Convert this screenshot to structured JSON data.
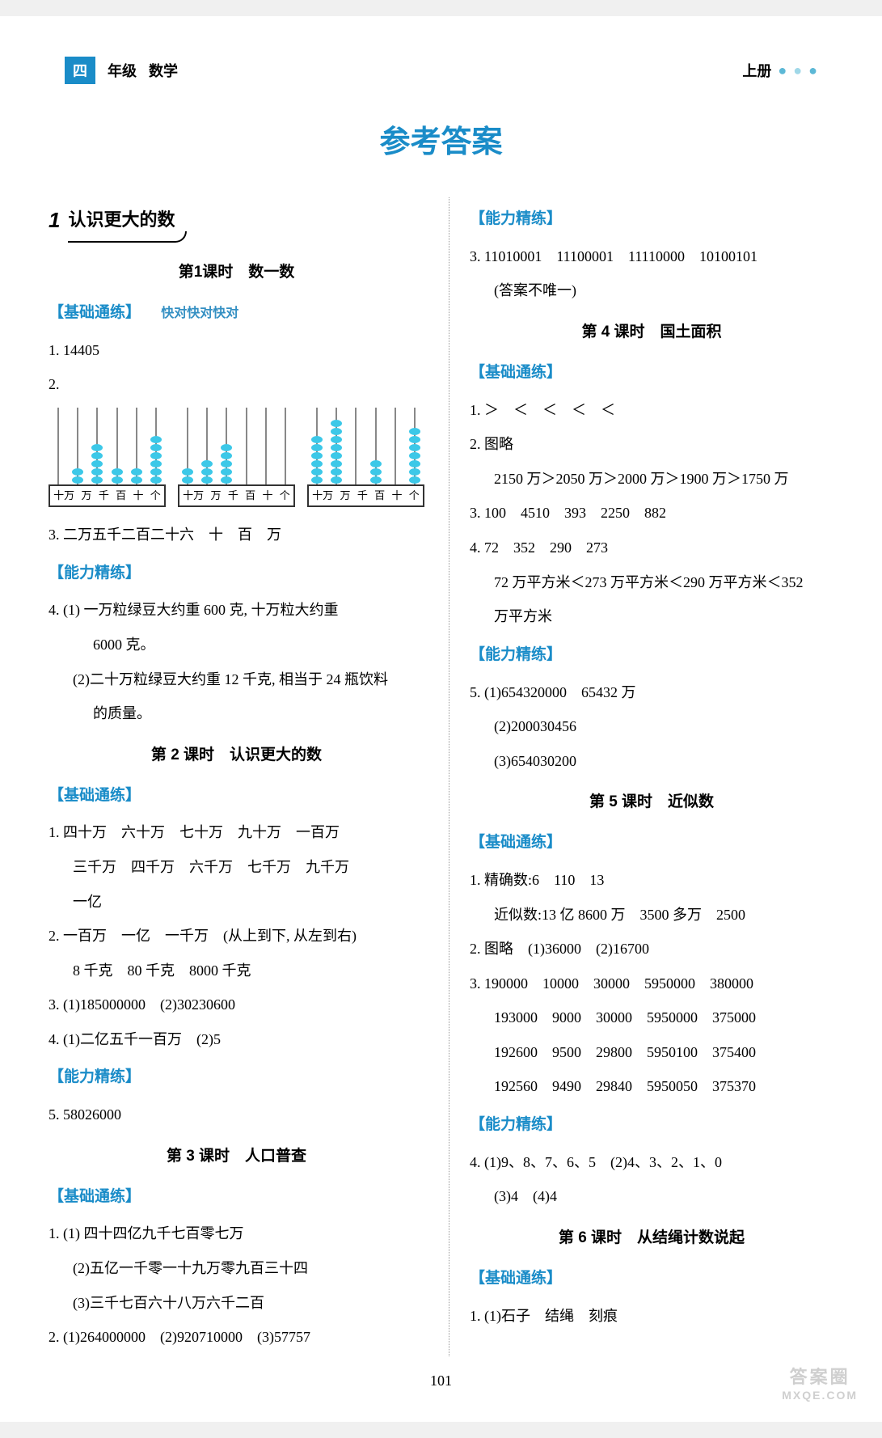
{
  "header": {
    "grade": "四",
    "grade_label": "年级",
    "subject": "数学",
    "volume": "上册"
  },
  "page_title": "参考答案",
  "page_number": "101",
  "watermark": {
    "line1": "答案圈",
    "line2": "MXQE.COM"
  },
  "abacus": {
    "labels": [
      "十万",
      "万",
      "千",
      "百",
      "十",
      "个"
    ],
    "counts": [
      [
        0,
        2,
        5,
        2,
        2,
        6
      ],
      [
        2,
        3,
        5,
        0,
        0,
        0
      ],
      [
        6,
        8,
        0,
        3,
        0,
        7
      ]
    ]
  },
  "left": {
    "unit": {
      "num": "1",
      "title": "认识更大的数"
    },
    "lesson1": {
      "title": "第1课时　数一数",
      "basic": "【基础通练】",
      "hand": "快对快对快对",
      "q1": "1. 14405",
      "q2": "2.",
      "q3": "3. 二万五千二百二十六　十　百　万",
      "ability": "【能力精练】",
      "q4a": "4. (1) 一万粒绿豆大约重 600 克, 十万粒大约重",
      "q4a2": "6000 克。",
      "q4b": "(2)二十万粒绿豆大约重 12 千克, 相当于 24 瓶饮料",
      "q4b2": "的质量。"
    },
    "lesson2": {
      "title": "第 2 课时　认识更大的数",
      "basic": "【基础通练】",
      "q1a": "1. 四十万　六十万　七十万　九十万　一百万",
      "q1b": "三千万　四千万　六千万　七千万　九千万",
      "q1c": "一亿",
      "q2a": "2. 一百万　一亿　一千万　(从上到下, 从左到右)",
      "q2b": "8 千克　80 千克　8000 千克",
      "q3": "3. (1)185000000　(2)30230600",
      "q4": "4. (1)二亿五千一百万　(2)5",
      "ability": "【能力精练】",
      "q5": "5. 58026000"
    },
    "lesson3": {
      "title": "第 3 课时　人口普查",
      "basic": "【基础通练】",
      "q1a": "1. (1) 四十四亿九千七百零七万",
      "q1b": "(2)五亿一千零一十九万零九百三十四",
      "q1c": "(3)三千七百六十八万六千二百",
      "q2": "2. (1)264000000　(2)920710000　(3)57757"
    }
  },
  "right": {
    "lesson3": {
      "ability": "【能力精练】",
      "q3a": "3. 11010001　11100001　11110000　10100101",
      "q3b": "(答案不唯一)"
    },
    "lesson4": {
      "title": "第 4 课时　国土面积",
      "basic": "【基础通练】",
      "q1": "1. ＞　＜　＜　＜　＜",
      "q2a": "2. 图略",
      "q2b": "2150 万＞2050 万＞2000 万＞1900 万＞1750 万",
      "q3": "3. 100　4510　393　2250　882",
      "q4a": "4. 72　352　290　273",
      "q4b": "72 万平方米＜273 万平方米＜290 万平方米＜352",
      "q4c": "万平方米",
      "ability": "【能力精练】",
      "q5a": "5. (1)654320000　65432 万",
      "q5b": "(2)200030456",
      "q5c": "(3)654030200"
    },
    "lesson5": {
      "title": "第 5 课时　近似数",
      "basic": "【基础通练】",
      "q1a": "1. 精确数:6　110　13",
      "q1b": "近似数:13 亿 8600 万　3500 多万　2500",
      "q2": "2. 图略　(1)36000　(2)16700",
      "q3a": "3. 190000　10000　30000　5950000　380000",
      "q3b": "193000　9000　30000　5950000　375000",
      "q3c": "192600　9500　29800　5950100　375400",
      "q3d": "192560　9490　29840　5950050　375370",
      "ability": "【能力精练】",
      "q4a": "4. (1)9、8、7、6、5　(2)4、3、2、1、0",
      "q4b": "(3)4　(4)4"
    },
    "lesson6": {
      "title": "第 6 课时　从结绳计数说起",
      "basic": "【基础通练】",
      "q1": "1. (1)石子　结绳　刻痕"
    }
  }
}
